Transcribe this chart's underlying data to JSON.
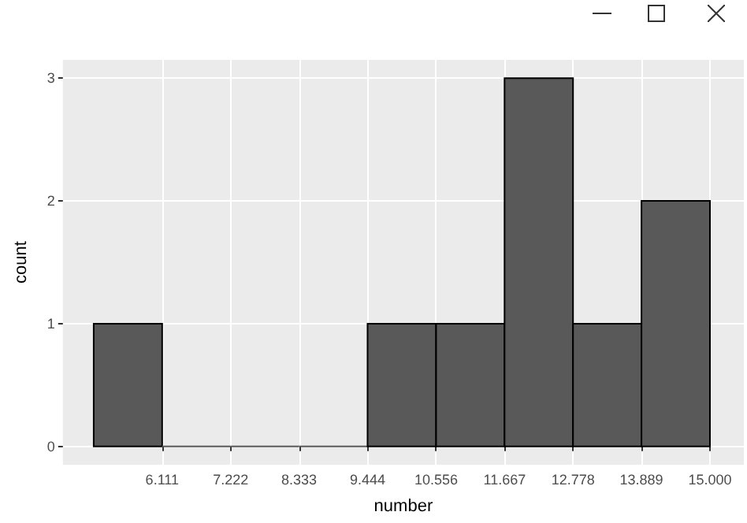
{
  "chart_data": {
    "type": "histogram",
    "xlabel": "number",
    "ylabel": "count",
    "bins": [
      5,
      6.111,
      7.222,
      8.333,
      9.444,
      10.556,
      11.667,
      12.778,
      13.889,
      15
    ],
    "values": [
      1,
      0,
      0,
      0,
      1,
      1,
      3,
      1,
      2
    ],
    "color": "#595959",
    "xlim": [
      4.5,
      15.55
    ],
    "xticks": [
      6.111,
      7.222,
      8.333,
      9.444,
      10.556,
      11.667,
      12.778,
      13.889,
      {
        "value": 15,
        "label": "15.000"
      }
    ],
    "ylim": [
      -0.15,
      3.15
    ],
    "yticks": [
      0,
      1,
      2,
      3
    ],
    "grid": true
  }
}
